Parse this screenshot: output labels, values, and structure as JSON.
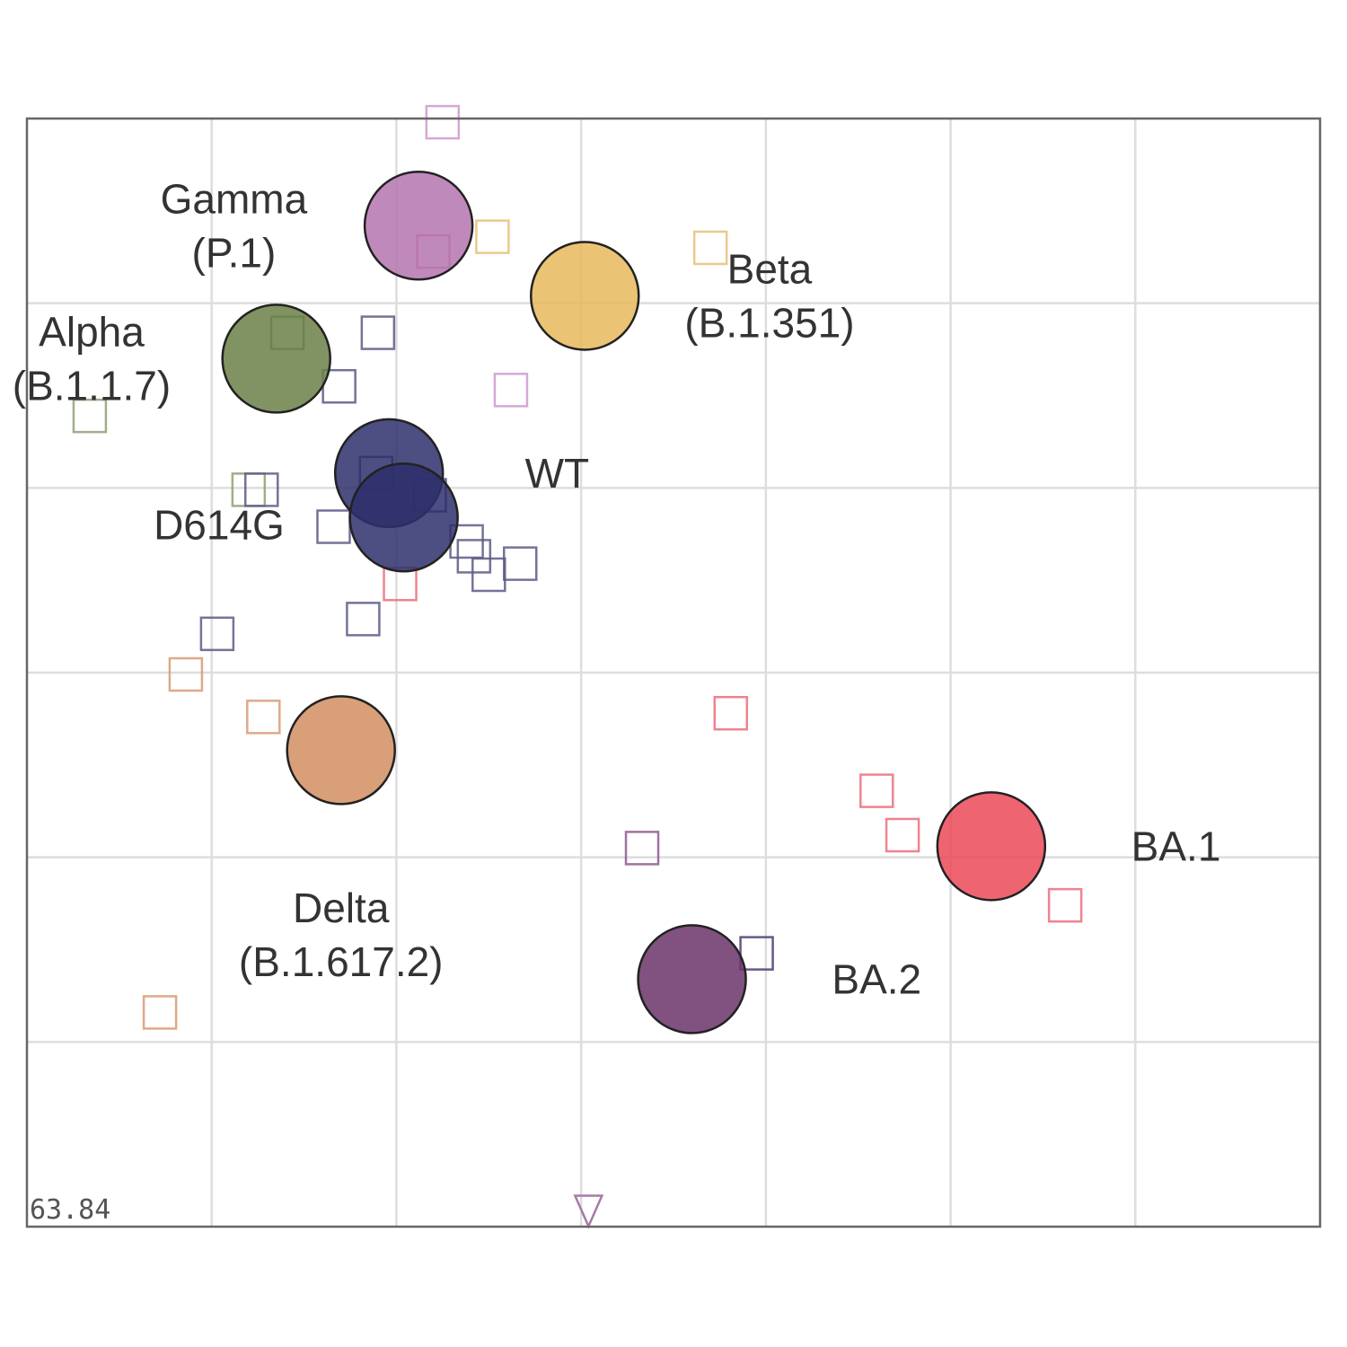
{
  "chart_data": {
    "type": "scatter",
    "title": "",
    "xlabel": "",
    "ylabel": "",
    "xlim": [
      0,
      7
    ],
    "ylim": [
      0,
      6
    ],
    "grid": true,
    "stress_label": "63.84",
    "antigens": [
      {
        "name": "WT",
        "label_lines": [
          "WT"
        ],
        "x": 1.96,
        "y": 4.08,
        "color": "#2e2f6b",
        "label_x": 2.87,
        "label_y": 4.08
      },
      {
        "name": "D614G",
        "label_lines": [
          "D614G"
        ],
        "x": 2.04,
        "y": 3.84,
        "color": "#2e2f6b",
        "label_x": 1.04,
        "label_y": 3.8
      },
      {
        "name": "Alpha",
        "label_lines": [
          "Alpha",
          "(B.1.1.7)"
        ],
        "x": 1.35,
        "y": 4.7,
        "color": "#6b8048",
        "label_x": 0.35,
        "label_y": 4.7
      },
      {
        "name": "Beta",
        "label_lines": [
          "Beta",
          "(B.1.351)"
        ],
        "x": 3.02,
        "y": 5.04,
        "color": "#e8b95c",
        "label_x": 4.02,
        "label_y": 5.04
      },
      {
        "name": "Gamma",
        "label_lines": [
          "Gamma",
          "(P.1)"
        ],
        "x": 2.12,
        "y": 5.42,
        "color": "#b574b0",
        "label_x": 1.12,
        "label_y": 5.42
      },
      {
        "name": "Delta",
        "label_lines": [
          "Delta",
          "(B.1.617.2)"
        ],
        "x": 1.7,
        "y": 2.58,
        "color": "#d18e61",
        "label_x": 1.7,
        "label_y": 1.58
      },
      {
        "name": "BA.1",
        "label_lines": [
          "BA.1"
        ],
        "x": 5.22,
        "y": 2.06,
        "color": "#eb4a58",
        "label_x": 6.22,
        "label_y": 2.06
      },
      {
        "name": "BA.2",
        "label_lines": [
          "BA.2"
        ],
        "x": 3.6,
        "y": 1.34,
        "color": "#6b3268",
        "label_x": 4.6,
        "label_y": 1.34
      }
    ],
    "sera": [
      {
        "x": 2.25,
        "y": 5.98,
        "color": "#cc9acd"
      },
      {
        "x": 2.52,
        "y": 5.36,
        "color": "#e8c078"
      },
      {
        "x": 3.7,
        "y": 5.3,
        "color": "#e8c078"
      },
      {
        "x": 2.2,
        "y": 5.28,
        "color": "#e06a7a"
      },
      {
        "x": 1.41,
        "y": 4.84,
        "color": "#6b8048"
      },
      {
        "x": 1.9,
        "y": 4.84,
        "color": "#5c5a85"
      },
      {
        "x": 1.69,
        "y": 4.55,
        "color": "#5c5a85"
      },
      {
        "x": 2.62,
        "y": 4.53,
        "color": "#cc9acd"
      },
      {
        "x": 0.34,
        "y": 4.39,
        "color": "#8ea076"
      },
      {
        "x": 1.89,
        "y": 4.08,
        "color": "#4d4b7a"
      },
      {
        "x": 2.18,
        "y": 3.96,
        "color": "#4d4b7a"
      },
      {
        "x": 1.2,
        "y": 3.99,
        "color": "#8ea076"
      },
      {
        "x": 1.27,
        "y": 3.99,
        "color": "#5c5a85"
      },
      {
        "x": 1.66,
        "y": 3.79,
        "color": "#5c5a85"
      },
      {
        "x": 2.38,
        "y": 3.71,
        "color": "#5c5a85"
      },
      {
        "x": 2.42,
        "y": 3.63,
        "color": "#5c5a85"
      },
      {
        "x": 2.67,
        "y": 3.59,
        "color": "#5c5a85"
      },
      {
        "x": 2.5,
        "y": 3.53,
        "color": "#5c5a85"
      },
      {
        "x": 2.02,
        "y": 3.48,
        "color": "#eb6e7a"
      },
      {
        "x": 1.82,
        "y": 3.29,
        "color": "#5c5a85"
      },
      {
        "x": 1.03,
        "y": 3.21,
        "color": "#5c5a85"
      },
      {
        "x": 0.86,
        "y": 2.99,
        "color": "#d89a74"
      },
      {
        "x": 1.28,
        "y": 2.76,
        "color": "#d89a74"
      },
      {
        "x": 3.81,
        "y": 2.78,
        "color": "#eb6e7a"
      },
      {
        "x": 4.6,
        "y": 2.36,
        "color": "#eb6e7a"
      },
      {
        "x": 4.74,
        "y": 2.12,
        "color": "#eb6e7a"
      },
      {
        "x": 3.33,
        "y": 2.05,
        "color": "#8e5a8c"
      },
      {
        "x": 5.62,
        "y": 1.74,
        "color": "#eb6e7a"
      },
      {
        "x": 3.95,
        "y": 1.48,
        "color": "#4d3a72"
      },
      {
        "x": 0.72,
        "y": 1.16,
        "color": "#d89a74"
      }
    ],
    "offscale_sera": [
      {
        "x": 3.04,
        "y": 0.08,
        "color": "#a87aa6"
      }
    ]
  }
}
